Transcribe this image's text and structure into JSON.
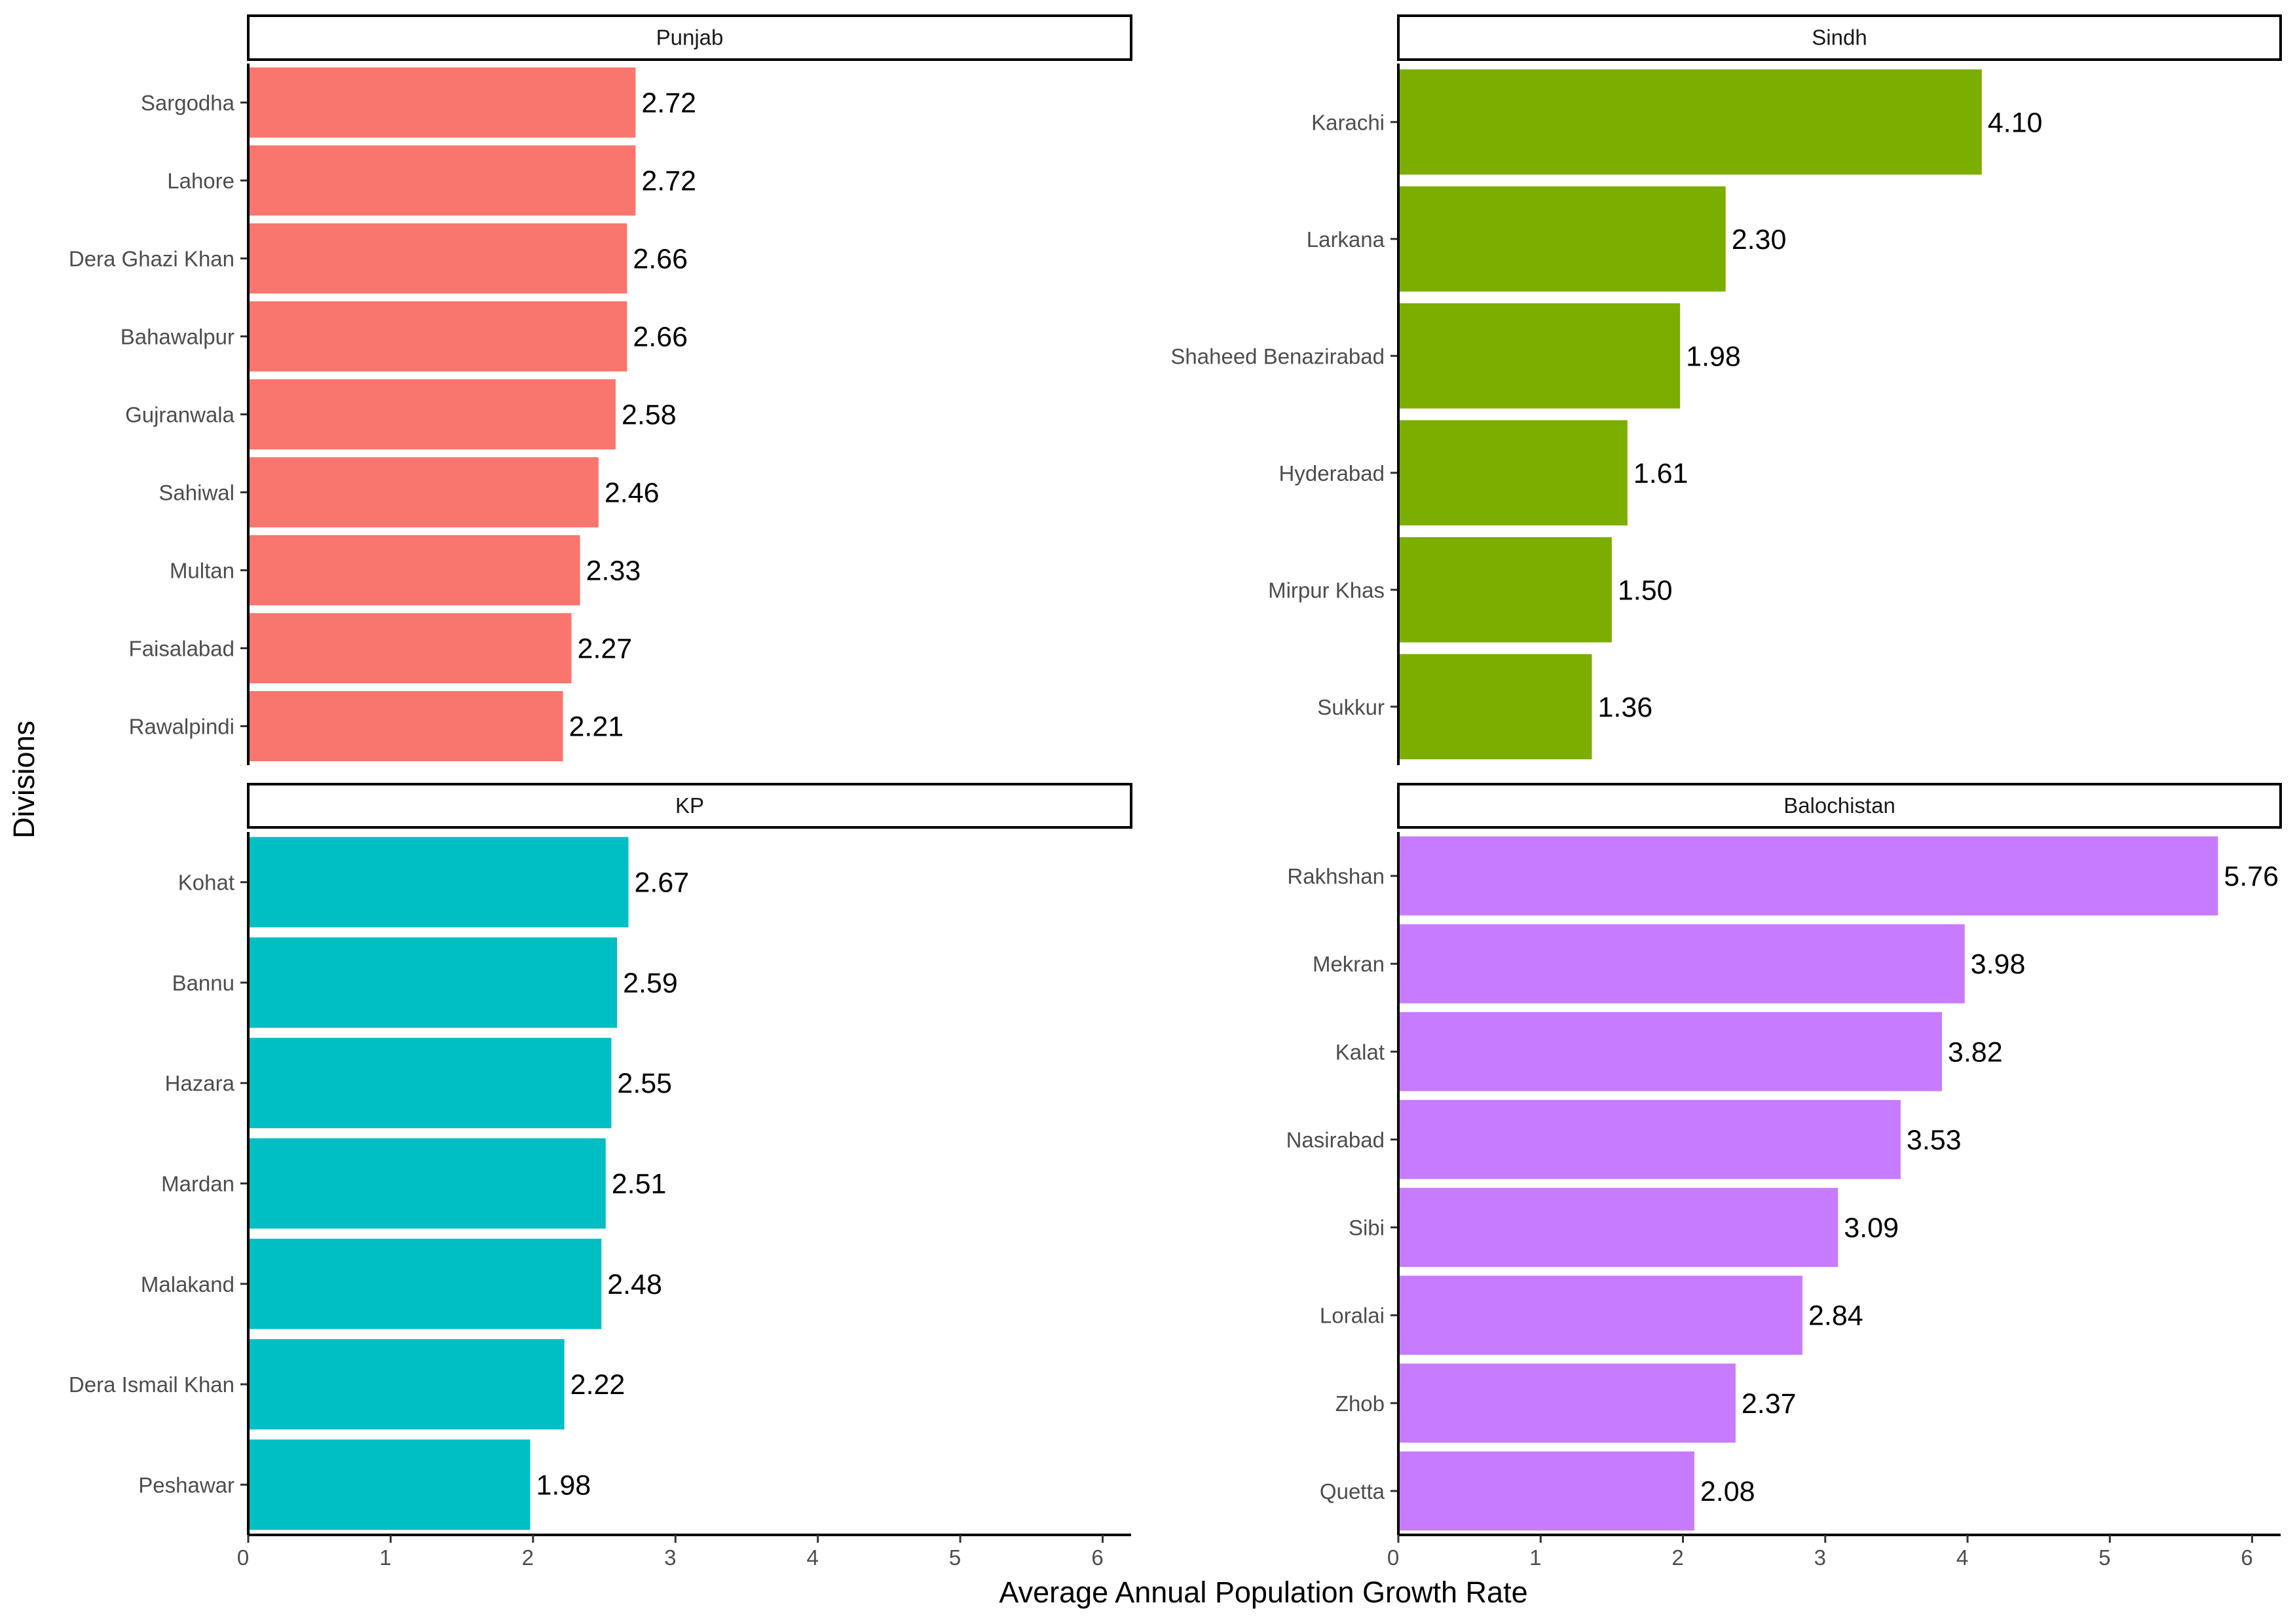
{
  "chart_data": {
    "type": "bar",
    "orientation": "horizontal",
    "facets": "2x2",
    "xlabel": "Average Annual Population Growth Rate",
    "ylabel": "Divisions",
    "xlim": [
      0,
      6.2
    ],
    "xticks": [
      0,
      1,
      2,
      3,
      4,
      5,
      6
    ],
    "grid": false,
    "panels": [
      {
        "strip": "Punjab",
        "color": "#F8766D",
        "categories": [
          "Sargodha",
          "Lahore",
          "Dera Ghazi Khan",
          "Bahawalpur",
          "Gujranwala",
          "Sahiwal",
          "Multan",
          "Faisalabad",
          "Rawalpindi"
        ],
        "values": [
          2.72,
          2.72,
          2.66,
          2.66,
          2.58,
          2.46,
          2.33,
          2.27,
          2.21
        ],
        "labels": [
          "2.72",
          "2.72",
          "2.66",
          "2.66",
          "2.58",
          "2.46",
          "2.33",
          "2.27",
          "2.21"
        ]
      },
      {
        "strip": "Sindh",
        "color": "#7CAE00",
        "categories": [
          "Karachi",
          "Larkana",
          "Shaheed Benazirabad",
          "Hyderabad",
          "Mirpur Khas",
          "Sukkur"
        ],
        "values": [
          4.1,
          2.3,
          1.98,
          1.61,
          1.5,
          1.36
        ],
        "labels": [
          "4.10",
          "2.30",
          "1.98",
          "1.61",
          "1.50",
          "1.36"
        ]
      },
      {
        "strip": "KP",
        "color": "#00BFC4",
        "categories": [
          "Kohat",
          "Bannu",
          "Hazara",
          "Mardan",
          "Malakand",
          "Dera Ismail Khan",
          "Peshawar"
        ],
        "values": [
          2.67,
          2.59,
          2.55,
          2.51,
          2.48,
          2.22,
          1.98
        ],
        "labels": [
          "2.67",
          "2.59",
          "2.55",
          "2.51",
          "2.48",
          "2.22",
          "1.98"
        ]
      },
      {
        "strip": "Balochistan",
        "color": "#C77CFF",
        "categories": [
          "Rakhshan",
          "Mekran",
          "Kalat",
          "Nasirabad",
          "Sibi",
          "Loralai",
          "Zhob",
          "Quetta"
        ],
        "values": [
          5.76,
          3.98,
          3.82,
          3.53,
          3.09,
          2.84,
          2.37,
          2.08
        ],
        "labels": [
          "5.76",
          "3.98",
          "3.82",
          "3.53",
          "3.09",
          "2.84",
          "2.37",
          "2.08"
        ]
      }
    ]
  }
}
